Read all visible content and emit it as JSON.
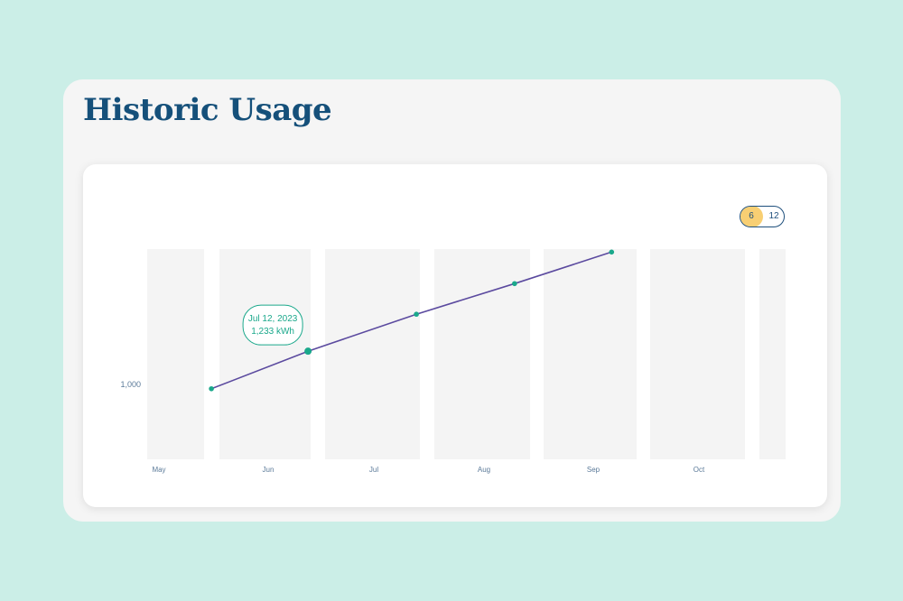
{
  "page": {
    "title": "Historic Usage"
  },
  "range_toggle": {
    "options": [
      "6",
      "12"
    ],
    "selected": "6"
  },
  "tooltip": {
    "date": "Jul 12, 2023",
    "value": "1,233 kWh"
  },
  "colors": {
    "line": "#5b4a9f",
    "point": "#1aa88b",
    "column": "#f4f4f4",
    "axis_text": "#5b7a99",
    "toggle_active": "#f8cf73"
  },
  "chart_data": {
    "type": "line",
    "categories": [
      "May",
      "Jun",
      "Jul",
      "Aug",
      "Sep",
      "Oct"
    ],
    "y_ticks": [
      1000
    ],
    "y_tick_labels": [
      "1,000"
    ],
    "ylim": [
      750,
      1450
    ],
    "series": [
      {
        "x": [
          1.4,
          2.4,
          3.3,
          4.2
        ],
        "values": [
          1110,
          1233,
          1335,
          1440
        ],
        "highlight_index": 0
      }
    ],
    "extra_initial_point": {
      "x": 0.4,
      "value": 985
    },
    "grid": false,
    "legend": "none"
  }
}
